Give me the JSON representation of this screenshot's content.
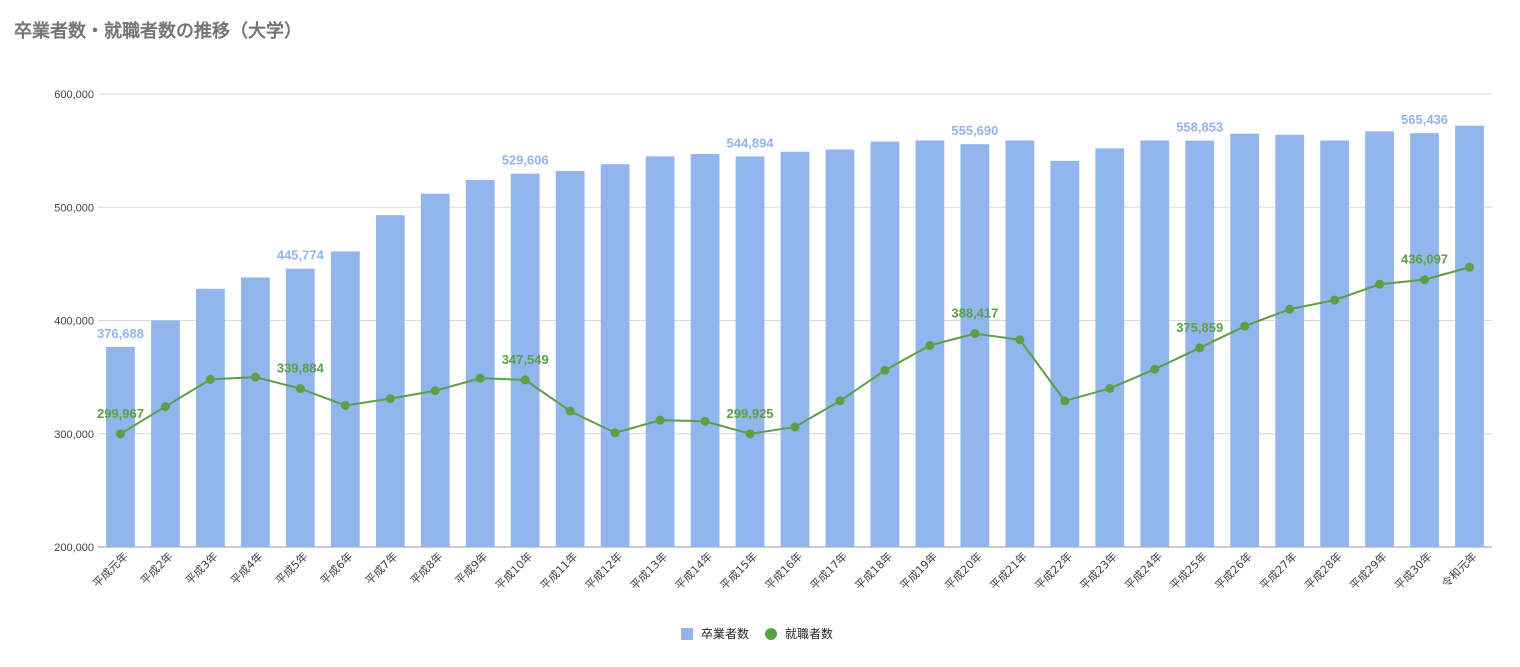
{
  "chart_data": {
    "type": "bar+line",
    "title": "卒業者数・就職者数の推移（大学）",
    "categories": [
      "平成元年",
      "平成2年",
      "平成3年",
      "平成4年",
      "平成5年",
      "平成6年",
      "平成7年",
      "平成8年",
      "平成9年",
      "平成10年",
      "平成11年",
      "平成12年",
      "平成13年",
      "平成14年",
      "平成15年",
      "平成16年",
      "平成17年",
      "平成18年",
      "平成19年",
      "平成20年",
      "平成21年",
      "平成22年",
      "平成23年",
      "平成24年",
      "平成25年",
      "平成26年",
      "平成27年",
      "平成28年",
      "平成29年",
      "平成30年",
      "令和元年"
    ],
    "series": [
      {
        "name": "卒業者数",
        "type": "bar",
        "color": "#93b5ee",
        "values": [
          376688,
          400000,
          428000,
          438000,
          445774,
          461000,
          493000,
          512000,
          524000,
          529606,
          532000,
          538000,
          545000,
          547000,
          544894,
          549000,
          551000,
          558000,
          559000,
          555690,
          559000,
          541000,
          552000,
          559000,
          558853,
          565000,
          564000,
          559000,
          567000,
          565436,
          572000
        ],
        "labels": {
          "0": "376,688",
          "4": "445,774",
          "9": "529,606",
          "14": "544,894",
          "19": "555,690",
          "24": "558,853",
          "29": "565,436"
        }
      },
      {
        "name": "就職者数",
        "type": "line",
        "color": "#5b9f46",
        "values": [
          299967,
          324000,
          348000,
          350000,
          339884,
          325000,
          331000,
          338000,
          349000,
          347549,
          320000,
          300800,
          312000,
          311000,
          299925,
          306000,
          329000,
          356000,
          378000,
          388417,
          383000,
          329000,
          340000,
          357000,
          375859,
          395000,
          410000,
          418000,
          432000,
          436097,
          447000
        ],
        "labels": {
          "0": "299,967",
          "4": "339,884",
          "9": "347,549",
          "14": "299,925",
          "19": "388,417",
          "24": "375,859",
          "29": "436,097"
        }
      }
    ],
    "ylim": [
      200000,
      600000
    ],
    "yticks": [
      200000,
      300000,
      400000,
      500000,
      600000
    ],
    "ytick_labels": [
      "200,000",
      "300,000",
      "400,000",
      "500,000",
      "600,000"
    ],
    "grid": true,
    "legend_position": "bottom-center"
  }
}
